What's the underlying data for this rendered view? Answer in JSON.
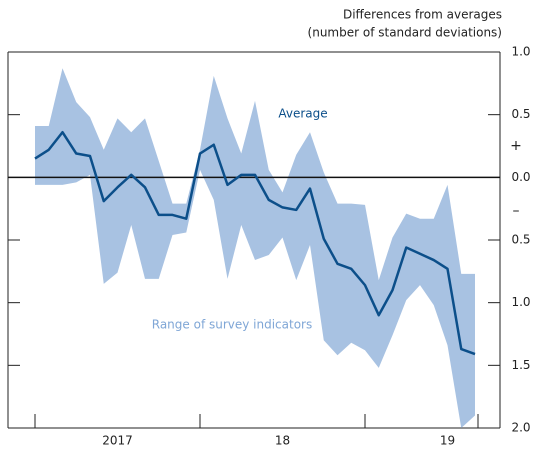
{
  "chart_data": {
    "type": "range-line",
    "axis_title": [
      "Differences from averages",
      "(number of standard deviations)"
    ],
    "years": [
      "2017",
      "18",
      "19"
    ],
    "series": [
      {
        "name": "Range of survey indicators",
        "color": "#a8c2e2",
        "high": [
          0.41,
          0.41,
          0.87,
          0.6,
          0.48,
          0.22,
          0.47,
          0.36,
          0.47,
          0.13,
          -0.21,
          -0.21,
          0.22,
          0.81,
          0.47,
          0.19,
          0.61,
          0.06,
          -0.12,
          0.18,
          0.36,
          0.04,
          -0.21,
          -0.21,
          -0.22,
          -0.82,
          -0.48,
          -0.29,
          -0.33,
          -0.33,
          -0.06,
          -0.77,
          -0.77
        ],
        "low": [
          -0.06,
          -0.06,
          -0.06,
          -0.04,
          0.02,
          -0.85,
          -0.76,
          -0.38,
          -0.81,
          -0.81,
          -0.46,
          -0.44,
          0.06,
          -0.18,
          -0.81,
          -0.38,
          -0.66,
          -0.62,
          -0.48,
          -0.82,
          -0.54,
          -1.3,
          -1.42,
          -1.32,
          -1.38,
          -1.52,
          -1.26,
          -0.98,
          -0.86,
          -1.02,
          -1.34,
          -2.0,
          -1.9
        ]
      },
      {
        "name": "Average",
        "color": "#0c4f8a",
        "values": [
          0.15,
          0.22,
          0.36,
          0.19,
          0.17,
          -0.19,
          -0.08,
          0.02,
          -0.08,
          -0.3,
          -0.3,
          -0.33,
          0.19,
          0.26,
          -0.06,
          0.02,
          0.02,
          -0.18,
          -0.24,
          -0.26,
          -0.09,
          -0.49,
          -0.69,
          -0.73,
          -0.86,
          -1.1,
          -0.9,
          -0.56,
          -0.61,
          -0.66,
          -0.73,
          -1.37,
          -1.41
        ]
      }
    ],
    "ylim": [
      -2.0,
      1.0
    ],
    "yticks": [
      {
        "value": 1.0,
        "label": "1.0"
      },
      0.5,
      {
        "value": 0.0,
        "label": "0.0"
      },
      {
        "value": -0.5,
        "label": "0.5"
      },
      {
        "value": -1.0,
        "label": "1.0"
      },
      {
        "value": -1.5,
        "label": "1.5"
      },
      {
        "value": -2.0,
        "label": "2.0"
      }
    ],
    "sign_labels": [
      "+",
      "–"
    ]
  }
}
